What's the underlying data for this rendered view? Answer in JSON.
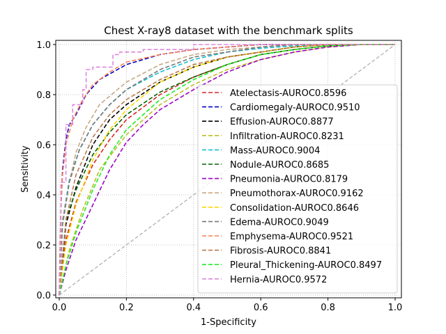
{
  "chart_data": {
    "type": "line",
    "title": "Chest X-ray8 dataset with the benchmark splits",
    "xlabel": "1-Specificity",
    "ylabel": "Sensitivity",
    "xlim": [
      0,
      1
    ],
    "ylim": [
      0,
      1
    ],
    "xticks": [
      "0.0",
      "0.2",
      "0.4",
      "0.6",
      "0.8",
      "1.0"
    ],
    "yticks": [
      "0.0",
      "0.2",
      "0.4",
      "0.6",
      "0.8",
      "1.0"
    ],
    "grid": true,
    "legend_position": "lower-right",
    "diagonal": {
      "x": [
        0,
        1
      ],
      "y": [
        0,
        1
      ],
      "color": "#aaaaaa"
    },
    "series": [
      {
        "name": "Atelectasis-AUROC0.8596",
        "color": "#d62728",
        "x": [
          0,
          0.02,
          0.05,
          0.1,
          0.15,
          0.2,
          0.3,
          0.4,
          0.5,
          0.6,
          0.7,
          0.8,
          0.9,
          1.0
        ],
        "y": [
          0,
          0.22,
          0.37,
          0.52,
          0.62,
          0.7,
          0.8,
          0.87,
          0.92,
          0.96,
          0.98,
          0.995,
          1.0,
          1.0
        ]
      },
      {
        "name": "Cardiomegaly-AUROC0.9510",
        "color": "#0000cc",
        "x": [
          0,
          0.005,
          0.01,
          0.02,
          0.03,
          0.05,
          0.08,
          0.12,
          0.2,
          0.3,
          0.4,
          0.5,
          0.6,
          0.7,
          0.8,
          1.0
        ],
        "y": [
          0,
          0.35,
          0.5,
          0.62,
          0.68,
          0.72,
          0.8,
          0.86,
          0.92,
          0.96,
          0.98,
          0.99,
          1.0,
          1.0,
          1.0,
          1.0
        ]
      },
      {
        "name": "Effusion-AUROC0.8877",
        "color": "#000000",
        "x": [
          0,
          0.02,
          0.05,
          0.1,
          0.15,
          0.2,
          0.3,
          0.4,
          0.5,
          0.6,
          0.7,
          0.8,
          0.9,
          1.0
        ],
        "y": [
          0,
          0.28,
          0.43,
          0.6,
          0.7,
          0.76,
          0.85,
          0.91,
          0.95,
          0.97,
          0.99,
          1.0,
          1.0,
          1.0
        ]
      },
      {
        "name": "Infiltration-AUROC0.8231",
        "color": "#bcbd22",
        "x": [
          0,
          0.03,
          0.07,
          0.12,
          0.2,
          0.3,
          0.4,
          0.5,
          0.6,
          0.7,
          0.8,
          0.9,
          1.0
        ],
        "y": [
          0,
          0.18,
          0.34,
          0.5,
          0.64,
          0.76,
          0.84,
          0.9,
          0.94,
          0.97,
          0.99,
          1.0,
          1.0
        ]
      },
      {
        "name": "Mass-AUROC0.9004",
        "color": "#17becf",
        "x": [
          0,
          0.01,
          0.03,
          0.06,
          0.1,
          0.15,
          0.2,
          0.3,
          0.4,
          0.5,
          0.6,
          0.7,
          0.8,
          0.9,
          1.0
        ],
        "y": [
          0,
          0.3,
          0.46,
          0.58,
          0.68,
          0.76,
          0.82,
          0.89,
          0.94,
          0.97,
          0.985,
          0.995,
          1.0,
          1.0,
          1.0
        ]
      },
      {
        "name": "Nodule-AUROC0.8685",
        "color": "#006400",
        "x": [
          0,
          0.02,
          0.05,
          0.1,
          0.15,
          0.2,
          0.3,
          0.4,
          0.5,
          0.6,
          0.7,
          0.8,
          0.9,
          1.0
        ],
        "y": [
          0,
          0.3,
          0.42,
          0.56,
          0.65,
          0.72,
          0.81,
          0.87,
          0.92,
          0.96,
          0.98,
          0.995,
          1.0,
          1.0
        ]
      },
      {
        "name": "Pneumonia-AUROC0.8179",
        "color": "#9c00c8",
        "x": [
          0,
          0.02,
          0.05,
          0.1,
          0.15,
          0.2,
          0.25,
          0.3,
          0.4,
          0.5,
          0.6,
          0.7,
          0.8,
          0.9,
          1.0
        ],
        "y": [
          0,
          0.1,
          0.22,
          0.36,
          0.5,
          0.61,
          0.68,
          0.74,
          0.82,
          0.89,
          0.94,
          0.97,
          0.99,
          1.0,
          1.0
        ]
      },
      {
        "name": "Pneumothorax-AUROC0.9162",
        "color": "#c8a882",
        "x": [
          0,
          0.01,
          0.03,
          0.05,
          0.08,
          0.12,
          0.2,
          0.3,
          0.4,
          0.5,
          0.6,
          0.7,
          0.8,
          1.0
        ],
        "y": [
          0,
          0.3,
          0.45,
          0.57,
          0.67,
          0.76,
          0.85,
          0.92,
          0.96,
          0.98,
          0.99,
          1.0,
          1.0,
          1.0
        ]
      },
      {
        "name": "Consolidation-AUROC0.8646",
        "color": "#ffd700",
        "x": [
          0,
          0.02,
          0.05,
          0.1,
          0.15,
          0.2,
          0.3,
          0.4,
          0.5,
          0.6,
          0.7,
          0.8,
          0.9,
          1.0
        ],
        "y": [
          0,
          0.2,
          0.36,
          0.54,
          0.66,
          0.74,
          0.85,
          0.91,
          0.95,
          0.97,
          0.99,
          1.0,
          1.0,
          1.0
        ]
      },
      {
        "name": "Edema-AUROC0.9049",
        "color": "#777777",
        "x": [
          0,
          0.01,
          0.03,
          0.06,
          0.1,
          0.15,
          0.2,
          0.3,
          0.4,
          0.5,
          0.6,
          0.7,
          0.8,
          1.0
        ],
        "y": [
          0,
          0.28,
          0.45,
          0.58,
          0.68,
          0.76,
          0.82,
          0.9,
          0.95,
          0.97,
          0.99,
          1.0,
          1.0,
          1.0
        ]
      },
      {
        "name": "Emphysema-AUROC0.9521",
        "color": "#ff7f50",
        "x": [
          0,
          0.005,
          0.01,
          0.02,
          0.04,
          0.07,
          0.1,
          0.15,
          0.2,
          0.3,
          0.4,
          0.5,
          0.6,
          0.8,
          1.0
        ],
        "y": [
          0,
          0.35,
          0.48,
          0.6,
          0.7,
          0.78,
          0.84,
          0.89,
          0.93,
          0.96,
          0.98,
          0.99,
          1.0,
          1.0,
          1.0
        ]
      },
      {
        "name": "Fibrosis-AUROC0.8841",
        "color": "#b87a4b",
        "x": [
          0,
          0.02,
          0.05,
          0.1,
          0.15,
          0.2,
          0.3,
          0.4,
          0.5,
          0.6,
          0.7,
          0.8,
          0.9,
          1.0
        ],
        "y": [
          0,
          0.3,
          0.48,
          0.63,
          0.72,
          0.78,
          0.86,
          0.92,
          0.95,
          0.97,
          0.99,
          1.0,
          1.0,
          1.0
        ]
      },
      {
        "name": "Pleural_Thickening-AUROC0.8497",
        "color": "#22ee22",
        "x": [
          0,
          0.02,
          0.05,
          0.1,
          0.15,
          0.2,
          0.3,
          0.4,
          0.5,
          0.6,
          0.7,
          0.8,
          0.9,
          1.0
        ],
        "y": [
          0,
          0.12,
          0.25,
          0.42,
          0.56,
          0.66,
          0.78,
          0.86,
          0.92,
          0.96,
          0.98,
          0.995,
          1.0,
          1.0
        ]
      },
      {
        "name": "Hernia-AUROC0.9572",
        "color": "#dd88dd",
        "x": [
          0,
          0.005,
          0.005,
          0.02,
          0.02,
          0.04,
          0.04,
          0.07,
          0.07,
          0.08,
          0.08,
          0.1,
          0.1,
          0.16,
          0.16,
          0.18,
          0.18,
          0.25,
          0.25,
          0.4,
          0.4,
          1.0
        ],
        "y": [
          0,
          0.2,
          0.45,
          0.45,
          0.68,
          0.68,
          0.76,
          0.76,
          0.82,
          0.82,
          0.9,
          0.9,
          0.91,
          0.91,
          0.96,
          0.96,
          0.97,
          0.97,
          0.98,
          0.98,
          1.0,
          1.0
        ]
      }
    ]
  }
}
